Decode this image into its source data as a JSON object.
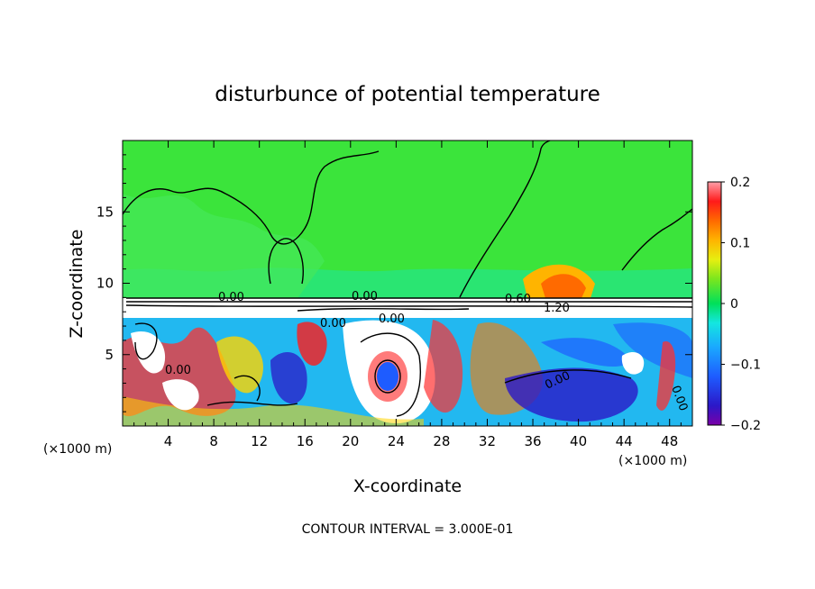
{
  "chart_data": {
    "type": "heatmap",
    "title": "disturbunce of potential temperature",
    "xlabel": "X-coordinate",
    "ylabel": "Z-coordinate",
    "x_unit": "(×1000 m)",
    "z_unit": "(×1000 m)",
    "xlim": [
      0,
      50
    ],
    "ylim": [
      0,
      20
    ],
    "x_ticks": [
      "4",
      "8",
      "12",
      "16",
      "20",
      "24",
      "28",
      "32",
      "36",
      "40",
      "44",
      "48"
    ],
    "y_ticks": [
      "5",
      "10",
      "15"
    ],
    "colorbar": {
      "min": -0.2,
      "max": 0.2,
      "tick_labels": [
        "0.2",
        "0.1",
        "0",
        "−0.1",
        "−0.2"
      ]
    },
    "contour_labels": [
      "0.00",
      "0.00",
      "0.00",
      "0.00",
      "0.60",
      "1.20",
      "0.00",
      "0.00",
      "0.00"
    ],
    "footer": "CONTOUR INTERVAL = 3.000E-01"
  }
}
